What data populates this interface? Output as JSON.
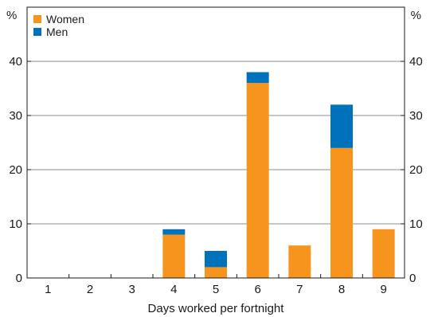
{
  "chart_data": {
    "type": "bar",
    "stacked": true,
    "categories": [
      "1",
      "2",
      "3",
      "4",
      "5",
      "6",
      "7",
      "8",
      "9"
    ],
    "series": [
      {
        "name": "Women",
        "values": [
          0,
          0,
          0,
          8,
          2,
          36,
          6,
          24,
          9
        ]
      },
      {
        "name": "Men",
        "values": [
          0,
          0,
          0,
          1,
          3,
          2,
          0,
          8,
          0
        ]
      }
    ],
    "xlabel": "Days worked per fortnight",
    "ylabel_left": "%",
    "ylabel_right": "%",
    "ylim": [
      0,
      50
    ],
    "yticks": [
      0,
      10,
      20,
      30,
      40
    ],
    "grid": true,
    "legend_position": "top-left",
    "colors": {
      "Women": "#F7941D",
      "Men": "#0072BC",
      "grid": "#8c8c8c",
      "axis": "#1a1a1a"
    }
  }
}
